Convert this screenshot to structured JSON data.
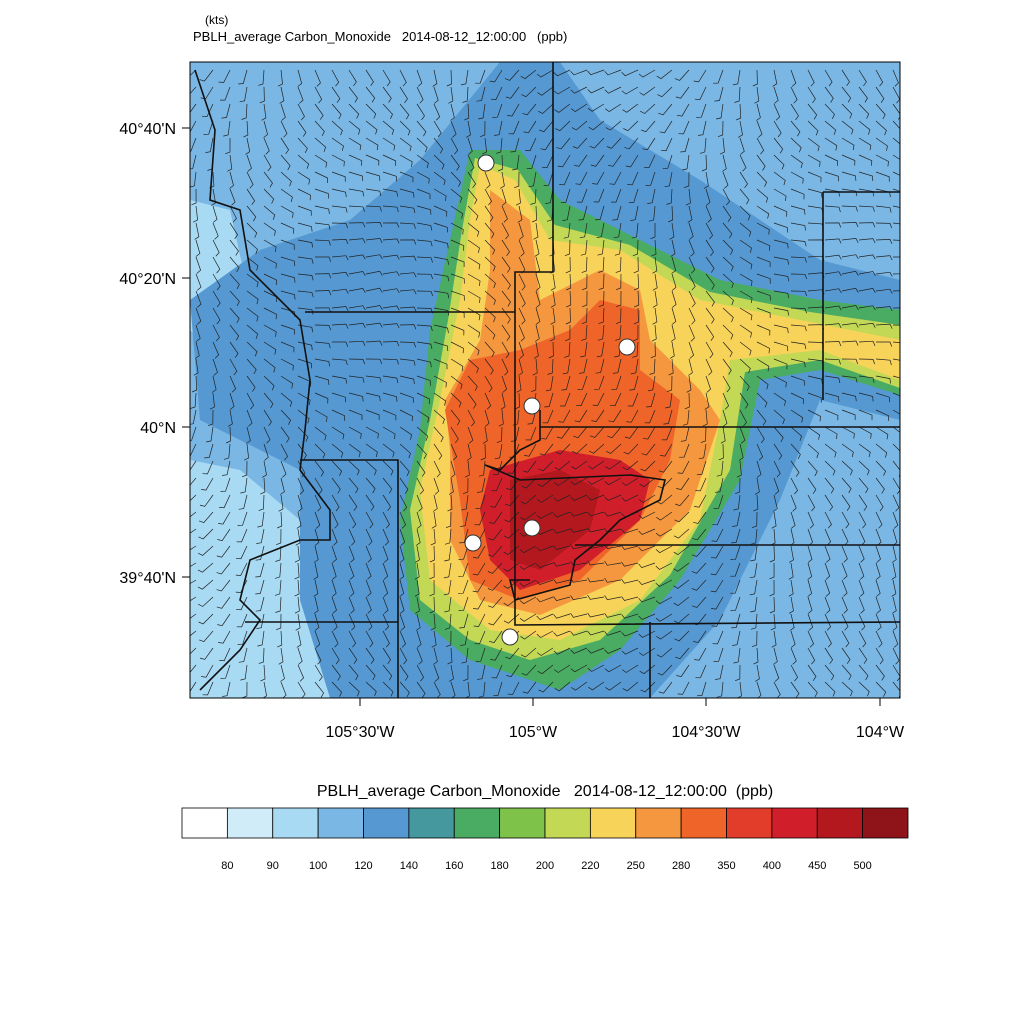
{
  "header": {
    "units": "(kts)",
    "title": "PBLH_average Carbon_Monoxide   2014-08-12_12:00:00   (ppb)"
  },
  "map": {
    "y_labels": [
      "40°40'N",
      "40°20'N",
      "40°N",
      "39°40'N"
    ],
    "x_labels": [
      "105°30'W",
      "105°W",
      "104°30'W",
      "104°W"
    ]
  },
  "colorbar": {
    "title": "PBLH_average Carbon_Monoxide   2014-08-12_12:00:00  (ppb)",
    "colors": [
      "#ffffff",
      "#d0ecf8",
      "#a8daf4",
      "#7ab7e4",
      "#5598d2",
      "#45999e",
      "#4aab62",
      "#7ec24a",
      "#c3d955",
      "#f8d35a",
      "#f5973e",
      "#ef6428",
      "#e23c2a",
      "#d01f2a",
      "#b3181f",
      "#8f1419"
    ],
    "labels": [
      80,
      90,
      100,
      120,
      140,
      160,
      180,
      200,
      220,
      250,
      280,
      350,
      400,
      450,
      500
    ]
  }
}
